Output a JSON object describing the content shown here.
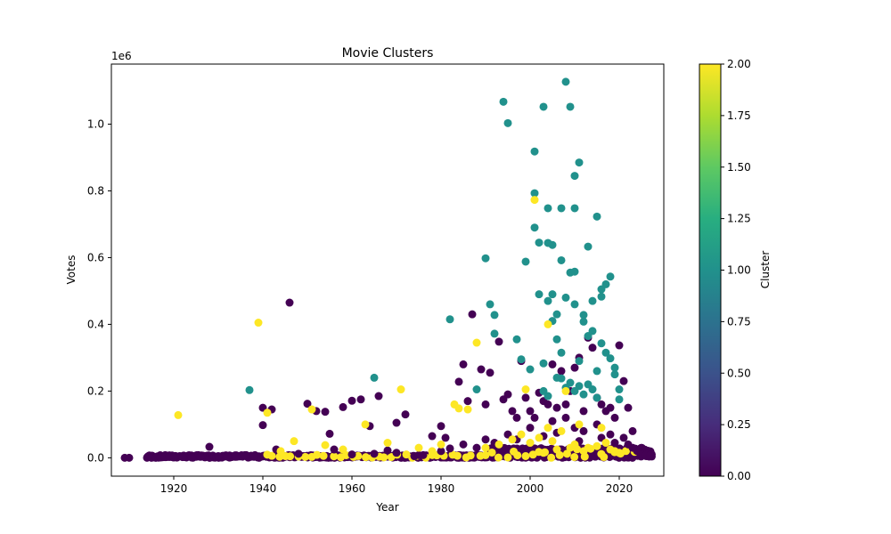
{
  "chart_data": {
    "type": "scatter",
    "title": "Movie Clusters",
    "xlabel": "Year",
    "ylabel": "Votes",
    "offset_text": "1e6",
    "xlim": [
      1906,
      2030
    ],
    "ylim": [
      -55000,
      1180000
    ],
    "x_ticks": [
      1920,
      1940,
      1960,
      1980,
      2000,
      2020
    ],
    "y_ticks": [
      0,
      200000,
      400000,
      600000,
      800000,
      1000000
    ],
    "y_tick_labels": [
      "0.0",
      "0.2",
      "0.4",
      "0.6",
      "0.8",
      "1.0"
    ],
    "grid": false,
    "colorbar": {
      "label": "Cluster",
      "range": [
        0,
        2
      ],
      "ticks": [
        0,
        0.25,
        0.5,
        0.75,
        1.0,
        1.25,
        1.5,
        1.75,
        2.0
      ],
      "tick_labels": [
        "0.00",
        "0.25",
        "0.50",
        "0.75",
        "1.00",
        "1.25",
        "1.50",
        "1.75",
        "2.00"
      ],
      "colormap": "viridis"
    },
    "series": [
      {
        "cluster": 0,
        "color": "#440154",
        "points": [
          [
            1909,
            0
          ],
          [
            1910,
            0
          ],
          [
            1914,
            0
          ],
          [
            1915,
            0
          ],
          [
            1916,
            0
          ],
          [
            1917,
            1000
          ],
          [
            1918,
            2000
          ],
          [
            1919,
            3000
          ],
          [
            1920,
            1000
          ],
          [
            1922,
            2000
          ],
          [
            1924,
            1000
          ],
          [
            1926,
            3000
          ],
          [
            1928,
            33000
          ],
          [
            1930,
            5000
          ],
          [
            1932,
            4000
          ],
          [
            1934,
            3000
          ],
          [
            1936,
            8000
          ],
          [
            1938,
            6000
          ],
          [
            1940,
            150000
          ],
          [
            1940,
            98000
          ],
          [
            1942,
            145000
          ],
          [
            1943,
            25000
          ],
          [
            1946,
            465000
          ],
          [
            1948,
            12000
          ],
          [
            1950,
            162000
          ],
          [
            1952,
            140000
          ],
          [
            1954,
            138000
          ],
          [
            1955,
            72000
          ],
          [
            1956,
            25000
          ],
          [
            1958,
            152000
          ],
          [
            1960,
            171000
          ],
          [
            1962,
            175000
          ],
          [
            1964,
            95000
          ],
          [
            1966,
            185000
          ],
          [
            1968,
            22000
          ],
          [
            1970,
            105000
          ],
          [
            1972,
            130000
          ],
          [
            1974,
            5000
          ],
          [
            1976,
            8000
          ],
          [
            1978,
            65000
          ],
          [
            1980,
            95000
          ],
          [
            1981,
            60000
          ],
          [
            1982,
            28000
          ],
          [
            1984,
            228000
          ],
          [
            1985,
            280000
          ],
          [
            1986,
            170000
          ],
          [
            1987,
            430000
          ],
          [
            1989,
            265000
          ],
          [
            1990,
            160000
          ],
          [
            1991,
            255000
          ],
          [
            1993,
            348000
          ],
          [
            1994,
            175000
          ],
          [
            1995,
            190000
          ],
          [
            1996,
            140000
          ],
          [
            1997,
            120000
          ],
          [
            1998,
            290000
          ],
          [
            1999,
            180000
          ],
          [
            2000,
            140000
          ],
          [
            2001,
            120000
          ],
          [
            2002,
            195000
          ],
          [
            2003,
            170000
          ],
          [
            2004,
            160000
          ],
          [
            2005,
            280000
          ],
          [
            2006,
            150000
          ],
          [
            2007,
            260000
          ],
          [
            2008,
            160000
          ],
          [
            2009,
            200000
          ],
          [
            2010,
            270000
          ],
          [
            2011,
            300000
          ],
          [
            2012,
            140000
          ],
          [
            2013,
            360000
          ],
          [
            2014,
            330000
          ],
          [
            2015,
            180000
          ],
          [
            2016,
            160000
          ],
          [
            2017,
            140000
          ],
          [
            2018,
            150000
          ],
          [
            2019,
            120000
          ],
          [
            2020,
            337000
          ],
          [
            2021,
            230000
          ],
          [
            2022,
            150000
          ],
          [
            2023,
            80000
          ],
          [
            2024,
            20000
          ],
          [
            2025,
            10000
          ],
          [
            2026,
            8000
          ],
          [
            2027,
            8000
          ],
          [
            1985,
            40000
          ],
          [
            1990,
            55000
          ],
          [
            1995,
            70000
          ],
          [
            2000,
            90000
          ],
          [
            2005,
            110000
          ],
          [
            2008,
            120000
          ],
          [
            2010,
            90000
          ],
          [
            2012,
            80000
          ],
          [
            2015,
            100000
          ],
          [
            2018,
            70000
          ],
          [
            2021,
            60000
          ],
          [
            2022,
            40000
          ],
          [
            1960,
            10000
          ],
          [
            1965,
            12000
          ],
          [
            1970,
            15000
          ],
          [
            1975,
            8000
          ],
          [
            1980,
            20000
          ],
          [
            1988,
            30000
          ],
          [
            1992,
            45000
          ],
          [
            1997,
            55000
          ],
          [
            2003,
            65000
          ],
          [
            2006,
            75000
          ],
          [
            2011,
            50000
          ],
          [
            2016,
            60000
          ],
          [
            2019,
            45000
          ],
          [
            2023,
            30000
          ]
        ]
      },
      {
        "cluster": 1,
        "color": "#21918c",
        "points": [
          [
            1937,
            203000
          ],
          [
            1965,
            240000
          ],
          [
            1982,
            415000
          ],
          [
            1988,
            205000
          ],
          [
            1990,
            598000
          ],
          [
            1991,
            460000
          ],
          [
            1992,
            428000
          ],
          [
            1992,
            372000
          ],
          [
            1994,
            1067000
          ],
          [
            1995,
            1003000
          ],
          [
            1997,
            355000
          ],
          [
            1998,
            295000
          ],
          [
            1999,
            588000
          ],
          [
            2000,
            265000
          ],
          [
            2001,
            918000
          ],
          [
            2001,
            793000
          ],
          [
            2001,
            690000
          ],
          [
            2002,
            645000
          ],
          [
            2002,
            490000
          ],
          [
            2003,
            1052000
          ],
          [
            2003,
            283000
          ],
          [
            2004,
            748000
          ],
          [
            2004,
            644000
          ],
          [
            2004,
            470000
          ],
          [
            2005,
            638000
          ],
          [
            2005,
            490000
          ],
          [
            2005,
            410000
          ],
          [
            2006,
            430000
          ],
          [
            2006,
            355000
          ],
          [
            2007,
            748000
          ],
          [
            2007,
            592000
          ],
          [
            2007,
            315000
          ],
          [
            2008,
            1127000
          ],
          [
            2008,
            480000
          ],
          [
            2009,
            1052000
          ],
          [
            2009,
            555000
          ],
          [
            2010,
            845000
          ],
          [
            2010,
            748000
          ],
          [
            2010,
            558000
          ],
          [
            2010,
            460000
          ],
          [
            2011,
            885000
          ],
          [
            2011,
            290000
          ],
          [
            2012,
            428000
          ],
          [
            2012,
            408000
          ],
          [
            2013,
            633000
          ],
          [
            2013,
            365000
          ],
          [
            2014,
            470000
          ],
          [
            2014,
            380000
          ],
          [
            2015,
            723000
          ],
          [
            2015,
            260000
          ],
          [
            2016,
            505000
          ],
          [
            2016,
            483000
          ],
          [
            2016,
            343000
          ],
          [
            2017,
            520000
          ],
          [
            2017,
            315000
          ],
          [
            2018,
            543000
          ],
          [
            2018,
            298000
          ],
          [
            2019,
            270000
          ],
          [
            2019,
            250000
          ],
          [
            2020,
            205000
          ],
          [
            2020,
            175000
          ],
          [
            2007,
            238000
          ],
          [
            2008,
            210000
          ],
          [
            2009,
            225000
          ],
          [
            2010,
            200000
          ],
          [
            2011,
            215000
          ],
          [
            2012,
            190000
          ],
          [
            2013,
            220000
          ],
          [
            2014,
            205000
          ],
          [
            2015,
            180000
          ],
          [
            2003,
            200000
          ],
          [
            2004,
            185000
          ],
          [
            2006,
            240000
          ]
        ]
      },
      {
        "cluster": 2,
        "color": "#fde725",
        "points": [
          [
            1921,
            128000
          ],
          [
            1939,
            405000
          ],
          [
            1941,
            135000
          ],
          [
            1947,
            50000
          ],
          [
            1951,
            145000
          ],
          [
            1954,
            38000
          ],
          [
            1963,
            100000
          ],
          [
            1968,
            45000
          ],
          [
            1971,
            205000
          ],
          [
            1980,
            40000
          ],
          [
            1983,
            160000
          ],
          [
            1984,
            148000
          ],
          [
            1986,
            145000
          ],
          [
            1988,
            345000
          ],
          [
            2001,
            773000
          ],
          [
            2004,
            400000
          ],
          [
            1999,
            205000
          ],
          [
            2004,
            90000
          ],
          [
            2008,
            200000
          ],
          [
            2011,
            100000
          ],
          [
            2016,
            90000
          ],
          [
            2003,
            15000
          ],
          [
            2006,
            25000
          ],
          [
            2009,
            30000
          ],
          [
            2012,
            20000
          ],
          [
            2015,
            35000
          ],
          [
            2018,
            25000
          ],
          [
            2020,
            15000
          ],
          [
            1990,
            30000
          ],
          [
            1993,
            40000
          ],
          [
            1996,
            55000
          ],
          [
            1998,
            70000
          ],
          [
            2000,
            45000
          ],
          [
            2002,
            60000
          ],
          [
            2005,
            50000
          ],
          [
            2007,
            80000
          ],
          [
            2010,
            40000
          ],
          [
            2013,
            30000
          ],
          [
            2017,
            45000
          ],
          [
            2019,
            20000
          ],
          [
            1944,
            20000
          ],
          [
            1958,
            25000
          ],
          [
            1975,
            30000
          ],
          [
            1978,
            20000
          ]
        ]
      }
    ]
  }
}
